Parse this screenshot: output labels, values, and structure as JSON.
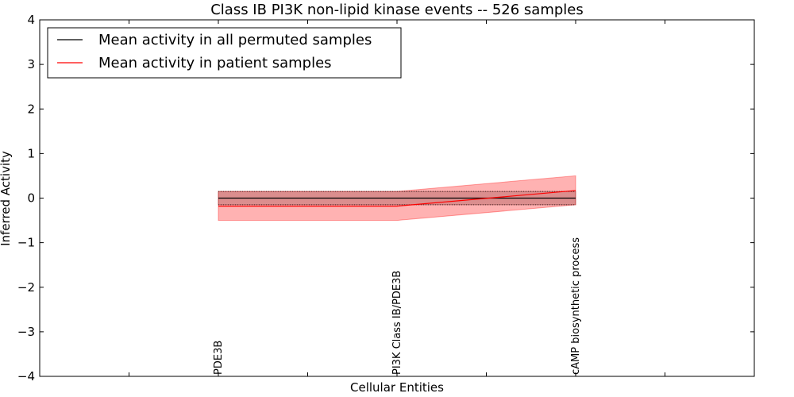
{
  "chart_data": {
    "type": "line",
    "title": "Class IB PI3K non-lipid kinase events -- 526 samples",
    "xlabel": "Cellular Entities",
    "ylabel": "Inferred Activity",
    "ylim": [
      -4,
      4
    ],
    "yticks": [
      -4,
      -3,
      -2,
      -1,
      0,
      1,
      2,
      3,
      4
    ],
    "ytick_labels": [
      "−4",
      "−3",
      "−2",
      "−1",
      "0",
      "1",
      "2",
      "3",
      "4"
    ],
    "x_count": 8,
    "categories": [
      "PDE3B",
      "PI3K Class IB/PDE3B",
      "cAMP biosynthetic process"
    ],
    "category_x": [
      2,
      4,
      6
    ],
    "grid": false,
    "legend_position": "top-left",
    "series": [
      {
        "name": "Mean activity in all permuted samples",
        "color": "#000000",
        "values": [
          0.0,
          0.0,
          0.0
        ],
        "band": {
          "lower": [
            -0.15,
            -0.15,
            -0.15
          ],
          "upper": [
            0.15,
            0.15,
            0.15
          ]
        }
      },
      {
        "name": "Mean activity in patient samples",
        "color": "#ff0000",
        "values": [
          -0.18,
          -0.18,
          0.17
        ],
        "band": {
          "lower": [
            -0.5,
            -0.5,
            -0.15
          ],
          "upper": [
            0.15,
            0.15,
            0.5
          ],
          "color": "#ff0000"
        }
      }
    ]
  }
}
